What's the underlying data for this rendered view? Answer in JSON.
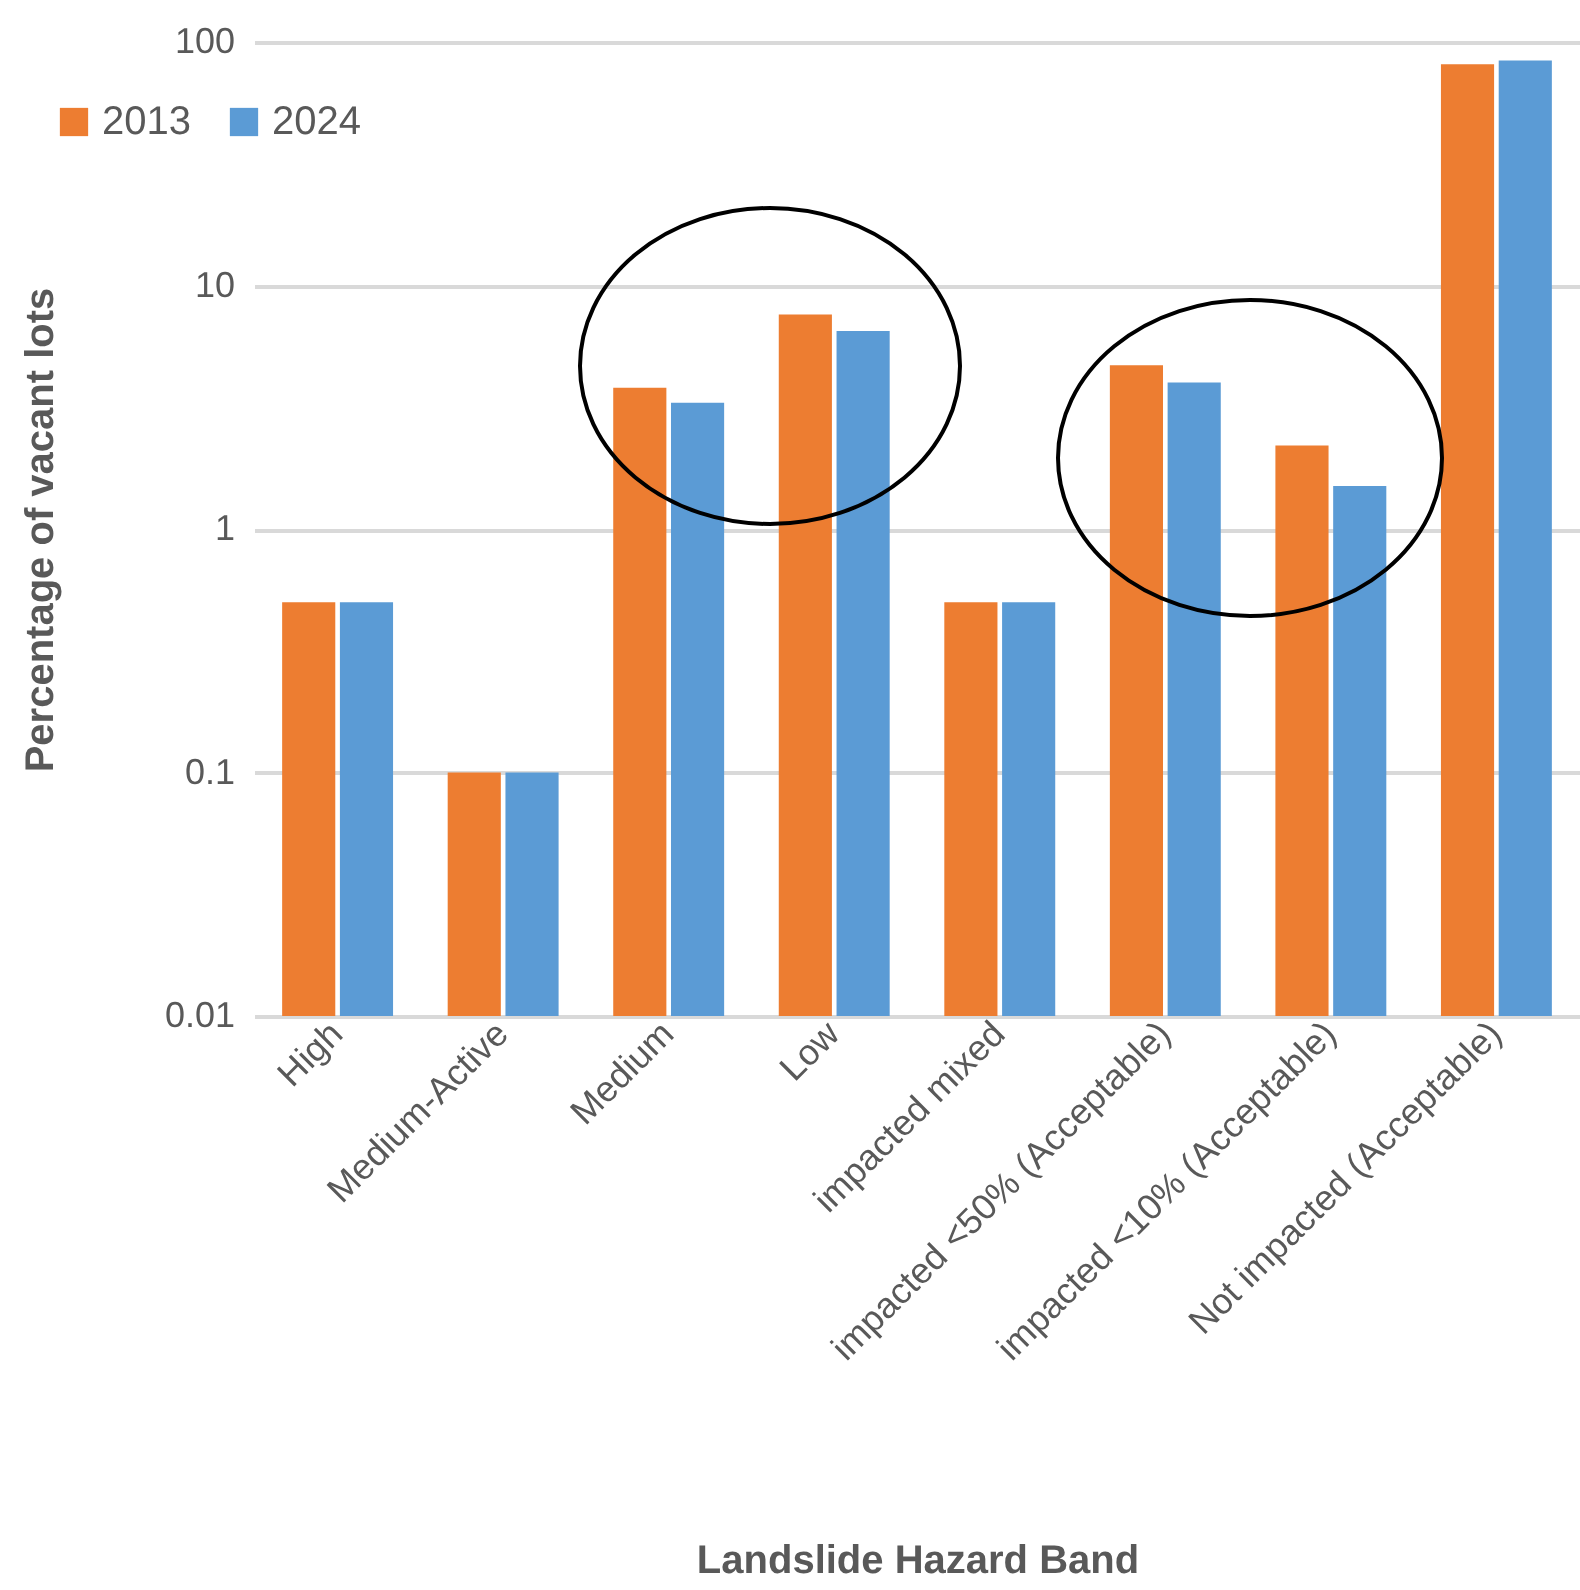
{
  "chart_data": {
    "type": "bar",
    "xlabel": "Landslide Hazard Band",
    "ylabel": "Percentage of vacant lots",
    "categories": [
      "High",
      "Medium-Active",
      "Medium",
      "Low",
      "impacted mixed",
      "impacted <50% (Acceptable)",
      "impacted <10% (Acceptable)",
      "Not impacted (Acceptable)"
    ],
    "series": [
      {
        "name": "2013",
        "color": "#ed7d31",
        "values": [
          0.5,
          0.1,
          3.8,
          7.6,
          0.5,
          4.7,
          2.2,
          81
        ]
      },
      {
        "name": "2024",
        "color": "#5b9bd5",
        "values": [
          0.5,
          0.1,
          3.3,
          6.5,
          0.5,
          4.0,
          1.5,
          84
        ]
      }
    ],
    "log": true,
    "ylim": [
      0.01,
      100
    ],
    "yticks": [
      0.01,
      0.1,
      1,
      10,
      100
    ],
    "grid": "y",
    "legend": "top left"
  }
}
